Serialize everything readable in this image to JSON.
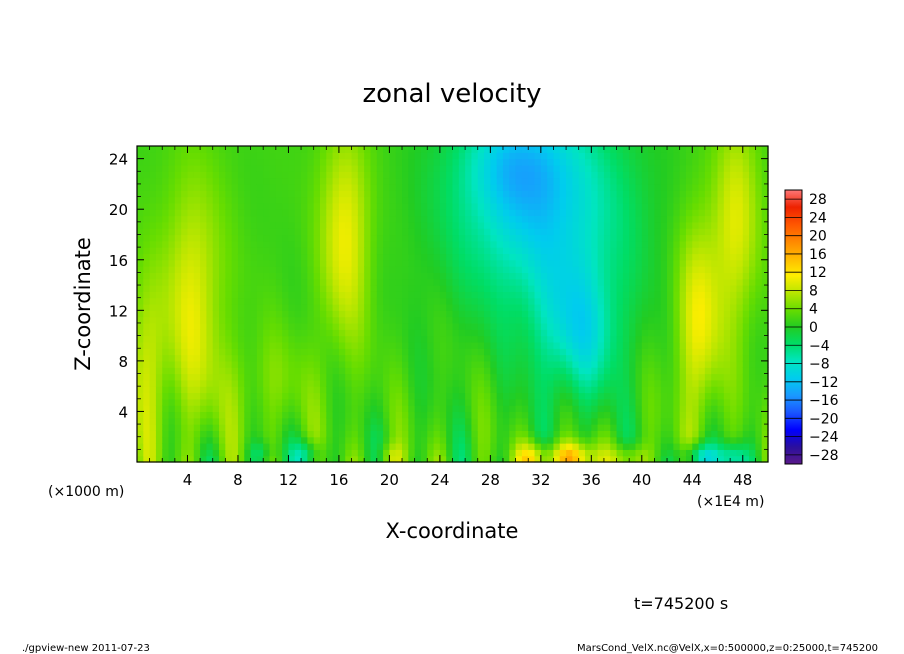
{
  "chart_data": {
    "type": "heatmap",
    "title": "zonal velocity",
    "xlabel": "X-coordinate",
    "ylabel": "Z-coordinate",
    "x_unit_left": "(×1000 m)",
    "x_unit_right": "(×1E4 m)",
    "x_ticks": [
      "4",
      "8",
      "12",
      "16",
      "20",
      "24",
      "28",
      "32",
      "36",
      "40",
      "44",
      "48"
    ],
    "x_tick_values": [
      4,
      8,
      12,
      16,
      20,
      24,
      28,
      32,
      36,
      40,
      44,
      48
    ],
    "xlim": [
      0,
      50
    ],
    "y_ticks": [
      "4",
      "8",
      "12",
      "16",
      "20",
      "24"
    ],
    "y_tick_values": [
      4,
      8,
      12,
      16,
      20,
      24
    ],
    "ylim": [
      0,
      25
    ],
    "colorbar": {
      "ticks": [
        "28",
        "24",
        "20",
        "16",
        "12",
        "8",
        "4",
        "0",
        "−4",
        "−8",
        "−12",
        "−16",
        "−20",
        "−24",
        "−28"
      ],
      "tick_values": [
        28,
        24,
        20,
        16,
        12,
        8,
        4,
        0,
        -4,
        -8,
        -12,
        -16,
        -20,
        -24,
        -28
      ],
      "range": [
        -30,
        30
      ],
      "colors": [
        "#5a1a8a",
        "#2a0f9e",
        "#0000ff",
        "#1a55ff",
        "#1a99ff",
        "#00ccee",
        "#00e5c0",
        "#00dd66",
        "#22cc22",
        "#66dd00",
        "#b8e600",
        "#ffee00",
        "#ffbb00",
        "#ff8800",
        "#ff5500",
        "#ee2200",
        "#ff7777"
      ]
    },
    "footer_time": "t=745200 s",
    "footer_left": "./gpview-new   2011-07-23",
    "footer_right": "MarsCond_VelX.nc@VelX,x=0:500000,z=0:25000,t=745200"
  }
}
